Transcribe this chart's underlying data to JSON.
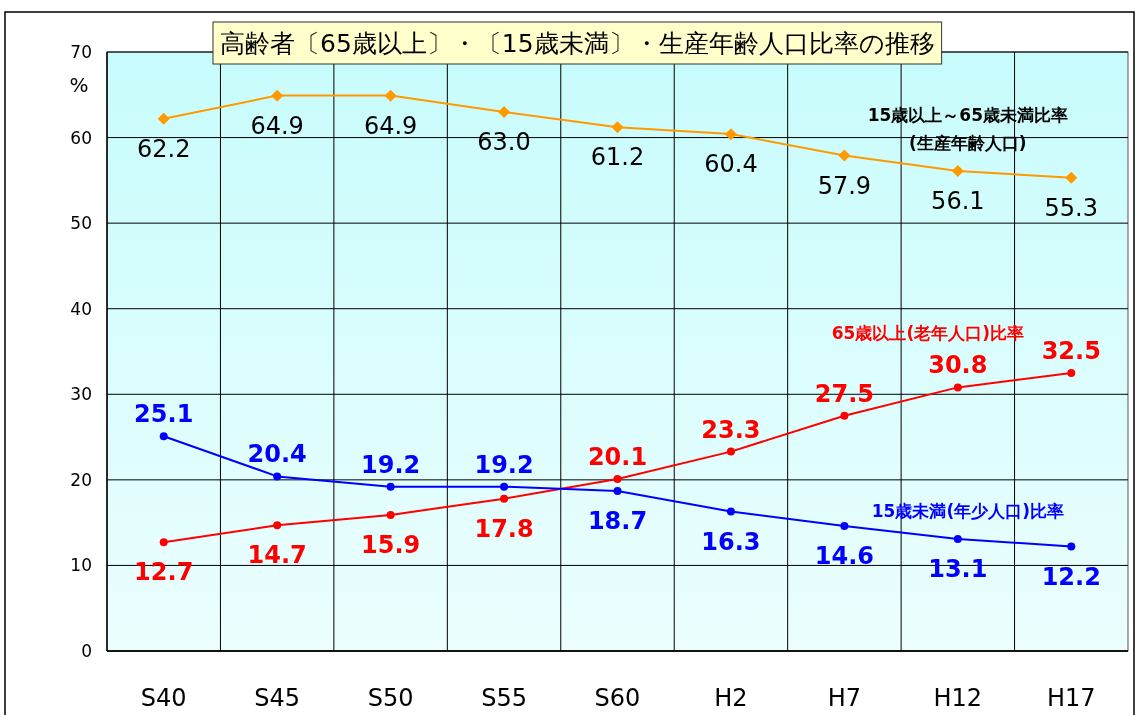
{
  "chart_data": {
    "type": "line",
    "title": "高齢者〔65歳以上〕・〔15歳未満〕・生産年齢人口比率の推移",
    "ylabel": "%",
    "categories": [
      "S40",
      "S45",
      "S50",
      "S55",
      "S60",
      "H2",
      "H7",
      "H12",
      "H17"
    ],
    "series": [
      {
        "name": "15歳以上～65歳未満比率\n(生産年齢人口)",
        "color": "#ff9900",
        "marker": "diamond",
        "values": [
          62.2,
          64.9,
          64.9,
          63.0,
          61.2,
          60.4,
          57.9,
          56.1,
          55.3
        ],
        "value_labels": [
          "62.2",
          "64.9",
          "64.9",
          "63.0",
          "61.2",
          "60.4",
          "57.9",
          "56.1",
          "55.3"
        ]
      },
      {
        "name": "65歳以上(老年人口)比率",
        "color": "#ff0000",
        "marker": "circle",
        "values": [
          12.7,
          14.7,
          15.9,
          17.8,
          20.1,
          23.3,
          27.5,
          30.8,
          32.5
        ],
        "value_labels": [
          "12.7",
          "14.7",
          "15.9",
          "17.8",
          "20.1",
          "23.3",
          "27.5",
          "30.8",
          "32.5"
        ]
      },
      {
        "name": "15歳未満(年少人口)比率",
        "color": "#0000ff",
        "marker": "circle",
        "values": [
          25.1,
          20.4,
          19.2,
          19.2,
          18.7,
          16.3,
          14.6,
          13.1,
          12.2
        ],
        "value_labels": [
          "25.1",
          "20.4",
          "19.2",
          "19.2",
          "18.7",
          "16.3",
          "14.6",
          "13.1",
          "12.2"
        ]
      }
    ],
    "ylim": [
      0,
      70
    ],
    "yticks": [
      0,
      10,
      20,
      30,
      40,
      50,
      60,
      70
    ],
    "grid": true,
    "legend": false
  }
}
